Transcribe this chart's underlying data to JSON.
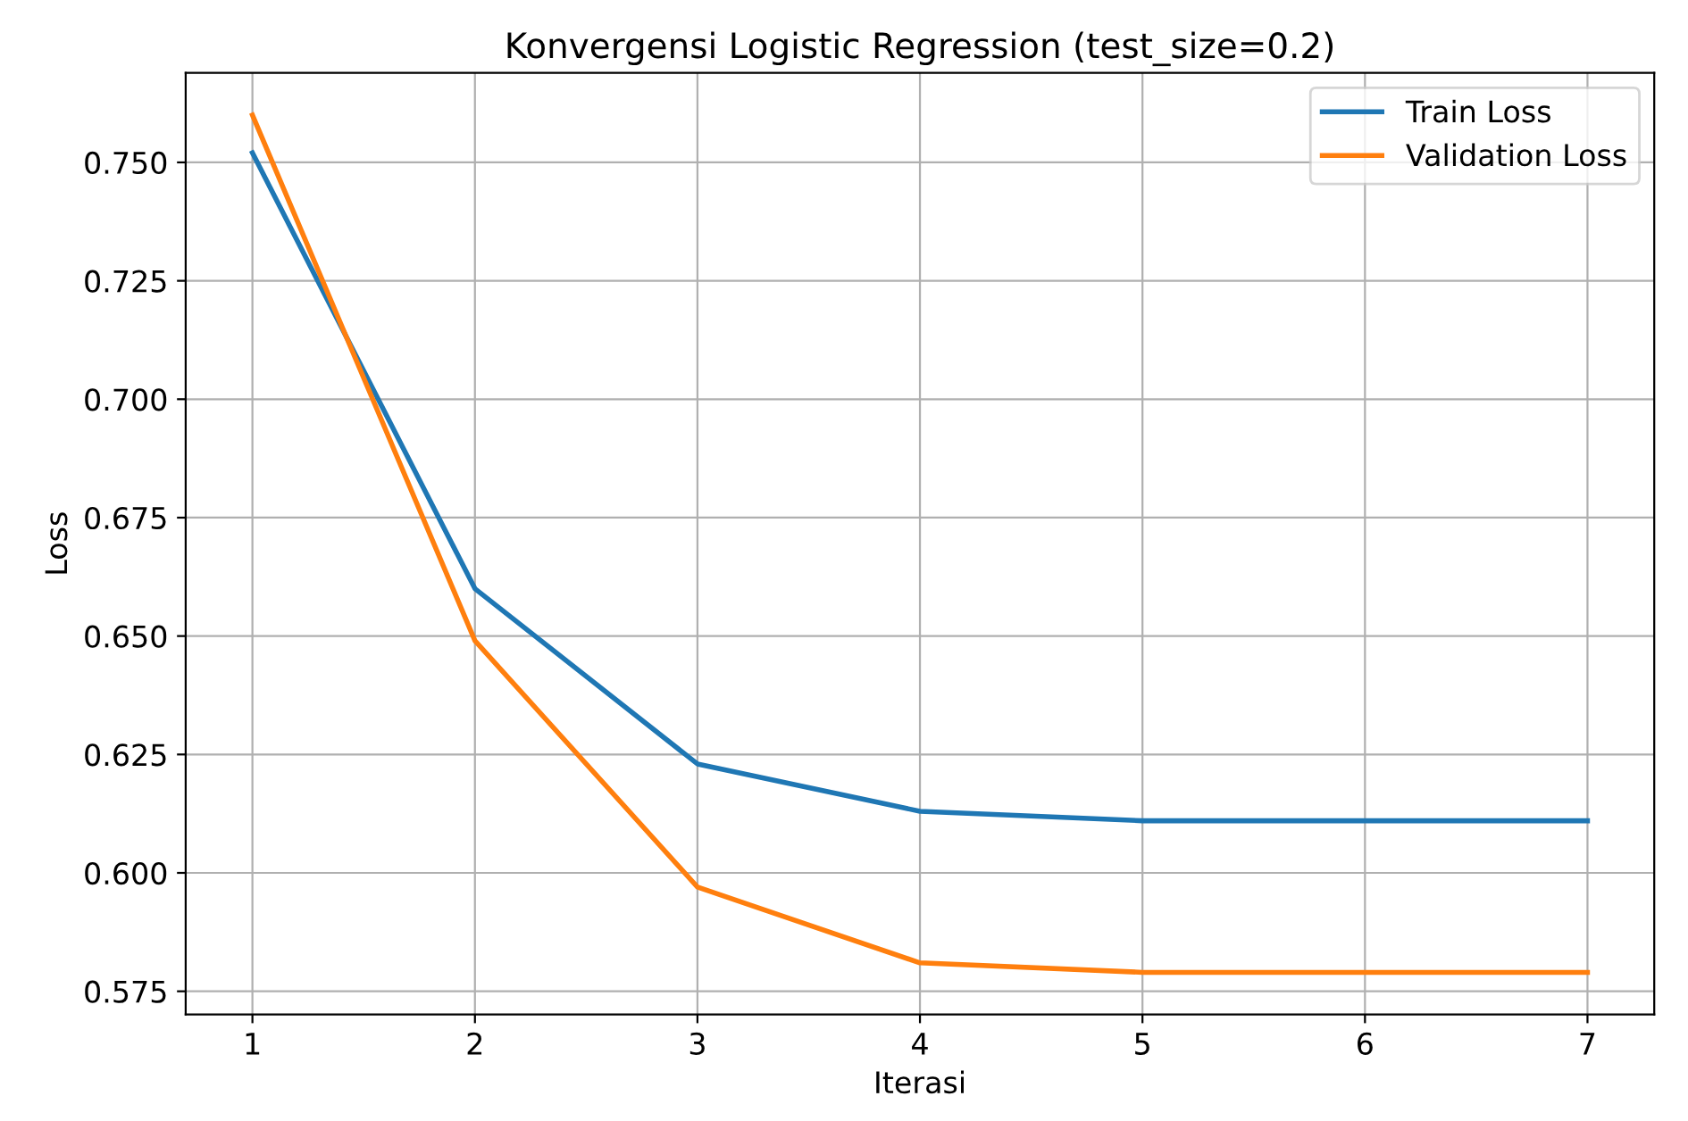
{
  "chart_data": {
    "type": "line",
    "title": "Konvergensi Logistic Regression (test_size=0.2)",
    "xlabel": "Iterasi",
    "ylabel": "Loss",
    "x": [
      1,
      2,
      3,
      4,
      5,
      6,
      7
    ],
    "series": [
      {
        "name": "Train Loss",
        "color": "#1f77b4",
        "values": [
          0.752,
          0.66,
          0.623,
          0.613,
          0.611,
          0.611,
          0.611
        ]
      },
      {
        "name": "Validation Loss",
        "color": "#ff7f0e",
        "values": [
          0.76,
          0.649,
          0.597,
          0.581,
          0.579,
          0.579,
          0.579
        ]
      }
    ],
    "xlim": [
      0.7,
      7.3
    ],
    "xticks": [
      1,
      2,
      3,
      4,
      5,
      6,
      7
    ],
    "ylim": [
      0.5701,
      0.7689
    ],
    "yticks": [
      {
        "value": 0.575,
        "label": "0.575"
      },
      {
        "value": 0.6,
        "label": "0.600"
      },
      {
        "value": 0.625,
        "label": "0.625"
      },
      {
        "value": 0.65,
        "label": "0.650"
      },
      {
        "value": 0.675,
        "label": "0.675"
      },
      {
        "value": 0.7,
        "label": "0.700"
      },
      {
        "value": 0.725,
        "label": "0.725"
      },
      {
        "value": 0.75,
        "label": "0.750"
      }
    ],
    "grid": true,
    "legend": "top right",
    "marker": "none",
    "line_style": "solid"
  }
}
